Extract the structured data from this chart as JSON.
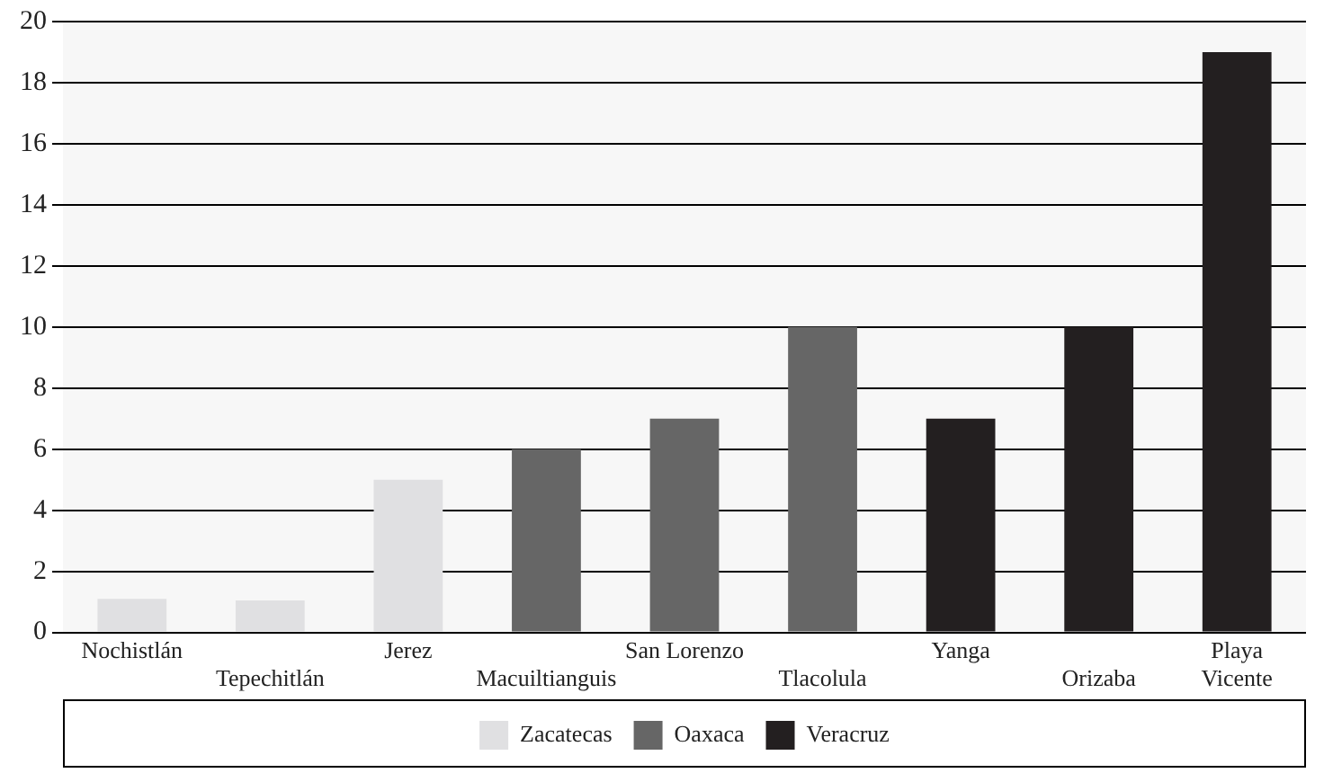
{
  "chart_data": {
    "type": "bar",
    "categories": [
      "Nochistlán",
      "Tepechitlán",
      "Jerez",
      "Macuiltianguis",
      "San Lorenzo",
      "Tlacolula",
      "Yanga",
      "Orizaba",
      "Playa Vicente"
    ],
    "series": [
      {
        "name": "Zacatecas",
        "color": "#e0e0e2",
        "values": [
          1.1,
          1.05,
          5,
          null,
          null,
          null,
          null,
          null,
          null
        ]
      },
      {
        "name": "Oaxaca",
        "color": "#666666",
        "values": [
          null,
          null,
          null,
          6,
          7,
          10,
          null,
          null,
          null
        ]
      },
      {
        "name": "Veracruz",
        "color": "#231f20",
        "values": [
          null,
          null,
          null,
          null,
          null,
          null,
          7,
          10,
          19
        ]
      }
    ],
    "ylim": [
      0,
      20
    ],
    "yticks": [
      0,
      2,
      4,
      6,
      8,
      10,
      12,
      14,
      16,
      18,
      20
    ],
    "grid": "y",
    "legend": "bottom"
  }
}
